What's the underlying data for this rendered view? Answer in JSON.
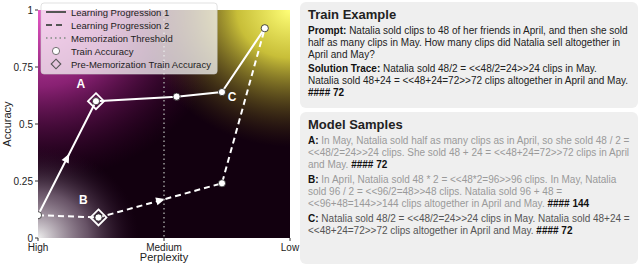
{
  "chart_data": {
    "type": "line",
    "xlabel": "Perplexity",
    "ylabel": "Accuracy",
    "xlim": [
      0,
      1
    ],
    "xticks": [
      {
        "value": 0,
        "label": "High"
      },
      {
        "value": 0.5,
        "label": "Medium"
      },
      {
        "value": 1,
        "label": "Low"
      }
    ],
    "ylim": [
      0,
      1
    ],
    "yticks": [
      0,
      0.25,
      0.5,
      0.75,
      1
    ],
    "legend": "upper left",
    "grid": false,
    "series": [
      {
        "name": "Learning Progression 1",
        "type": "line",
        "line_style": "solid",
        "color": "#ffffff",
        "x": [
          0,
          0.23,
          0.55,
          0.73,
          0.9
        ],
        "values": [
          0.1,
          0.6,
          0.62,
          0.64,
          0.92
        ]
      },
      {
        "name": "Learning Progression 2",
        "type": "line",
        "line_style": "dashed",
        "color": "#ffffff",
        "x": [
          0,
          0.24,
          0.73,
          0.9
        ],
        "values": [
          0.1,
          0.09,
          0.24,
          0.92
        ]
      },
      {
        "name": "Memorization Threshold",
        "type": "vline",
        "line_style": "dotted",
        "color": "#9a9a9a",
        "x": [
          0.5
        ]
      },
      {
        "name": "Train Accuracy",
        "type": "scatter",
        "marker": "circle",
        "color": "#ffffff",
        "x": [
          0,
          0.23,
          0.55,
          0.73,
          0.9,
          0.24,
          0.73
        ],
        "values": [
          0.1,
          0.6,
          0.62,
          0.64,
          0.92,
          0.09,
          0.24
        ]
      },
      {
        "name": "Pre-Memorization Train Accuracy",
        "type": "scatter",
        "marker": "diamond",
        "color": "#ffffff",
        "x": [
          0.23,
          0.24
        ],
        "values": [
          0.6,
          0.09
        ]
      }
    ],
    "annotations": [
      {
        "text": "A",
        "x": 0.17,
        "y": 0.66
      },
      {
        "text": "B",
        "x": 0.18,
        "y": 0.15
      },
      {
        "text": "C",
        "x": 0.77,
        "y": 0.6
      }
    ]
  },
  "train_example": {
    "title": "Train Example",
    "prompt_label": "Prompt:",
    "prompt": "Natalia sold clips to 48 of her friends in April, and then she sold half as many clips in May. How many clips did Natalia sell altogether in April and May?",
    "solution_label": "Solution Trace:",
    "solution": "Natalia sold 48/2 = <<48/2=24>>24 clips in May. Natalia sold 48+24 = <<48+24=72>>72 clips altogether in April and May.",
    "answer": "#### 72"
  },
  "model_samples": {
    "title": "Model Samples",
    "samples": [
      {
        "label": "A:",
        "text": "In May, Natalia sold half as many clips as in April, so she sold 48 / 2 = <<48/2=24>>24 clips. She sold 48 + 24 = <<48+24=72>>72 clips in April and May.",
        "answer": "#### 72"
      },
      {
        "label": "B:",
        "text": "In April, Natalia sold 48 * 2 = <<48*2=96>>96 clips. In May, Natalia sold 96 / 2 = <<96/2=48>>48 clips. Natalia sold 96 + 48 = <<96+48=144>>144 clips altogether in April and May.",
        "answer": "#### 144"
      },
      {
        "label": "C:",
        "text": "Natalia sold 48/2 = <<48/2=24>>24 clips in May. Natalia sold 48+24 = <<48+24=72>>72 clips altogether in April and May.",
        "answer": "#### 72"
      }
    ]
  }
}
